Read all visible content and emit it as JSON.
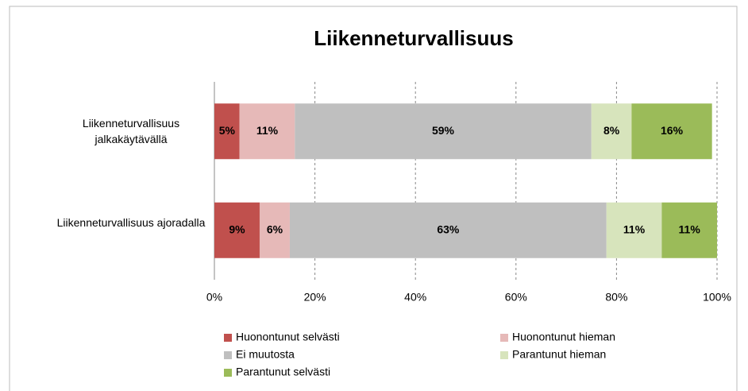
{
  "chart_data": {
    "type": "stacked-bar-horizontal",
    "title": "Liikenneturvallisuus",
    "categories": [
      "Liikenneturvallisuus jalkakäytävällä",
      "Liikenneturvallisuus ajoradalla"
    ],
    "series": [
      {
        "name": "Huonontunut selvästi",
        "color": "#c0504d",
        "values": [
          5,
          9
        ],
        "value_labels": [
          "5%",
          "9%"
        ]
      },
      {
        "name": "Huonontunut hieman",
        "color": "#e6b9b8",
        "values": [
          11,
          6
        ],
        "value_labels": [
          "11%",
          "6%"
        ]
      },
      {
        "name": "Ei muutosta",
        "color": "#bfbfbf",
        "values": [
          59,
          63
        ],
        "value_labels": [
          "59%",
          "63%"
        ]
      },
      {
        "name": "Parantunut hieman",
        "color": "#d7e4bc",
        "values": [
          8,
          11
        ],
        "value_labels": [
          "8%",
          "11%"
        ]
      },
      {
        "name": "Parantunut selvästi",
        "color": "#9bbb59",
        "values": [
          16,
          11
        ],
        "value_labels": [
          "16%",
          "11%"
        ]
      }
    ],
    "xlim": [
      0,
      100
    ],
    "xticks": [
      {
        "value": 0,
        "label": "0%"
      },
      {
        "value": 20,
        "label": "20%"
      },
      {
        "value": 40,
        "label": "40%"
      },
      {
        "value": 60,
        "label": "60%"
      },
      {
        "value": 80,
        "label": "80%"
      },
      {
        "value": 100,
        "label": "100%"
      }
    ],
    "grid": true,
    "legend": "bottom"
  }
}
